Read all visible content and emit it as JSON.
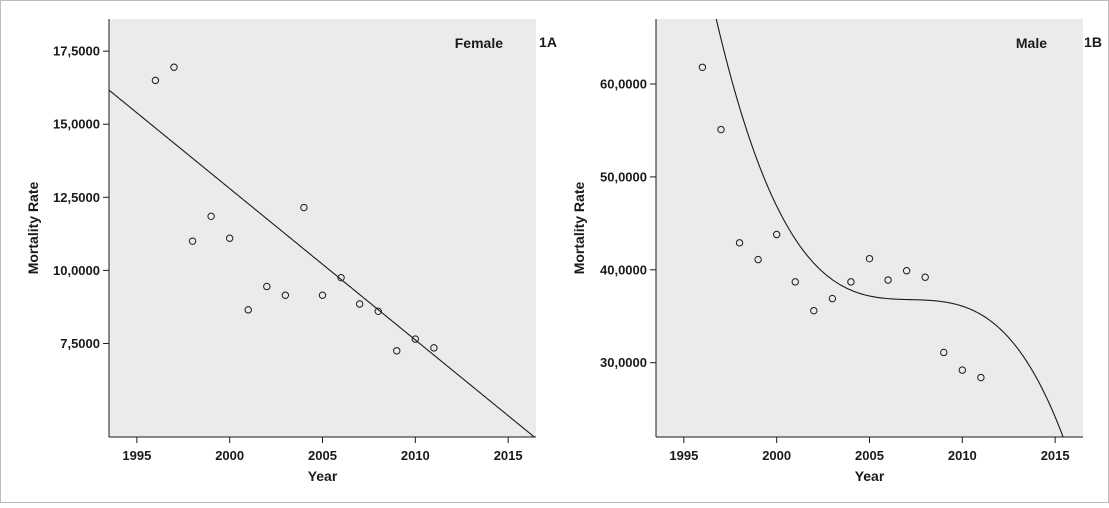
{
  "chart_data": [
    {
      "type": "scatter",
      "panel_label": "1A",
      "title": "Female",
      "xlabel": "Year",
      "ylabel": "Mortality Rate",
      "xlim": [
        1993.5,
        2016.5
      ],
      "ylim": [
        4300,
        18600
      ],
      "xticks": [
        1995,
        2000,
        2005,
        2010,
        2015
      ],
      "xtick_labels": [
        "1995",
        "2000",
        "2005",
        "2010",
        "2015"
      ],
      "yticks": [
        7500,
        10000,
        12500,
        15000,
        17500
      ],
      "ytick_labels": [
        "7,5000",
        "10,0000",
        "12,5000",
        "15,0000",
        "17,5000"
      ],
      "grid": false,
      "background": "#ebebeb",
      "points": [
        {
          "x": 1996,
          "y": 16500
        },
        {
          "x": 1997,
          "y": 16950
        },
        {
          "x": 1998,
          "y": 11000
        },
        {
          "x": 1999,
          "y": 11850
        },
        {
          "x": 2000,
          "y": 11100
        },
        {
          "x": 2001,
          "y": 8650
        },
        {
          "x": 2002,
          "y": 9450
        },
        {
          "x": 2003,
          "y": 9150
        },
        {
          "x": 2004,
          "y": 12150
        },
        {
          "x": 2005,
          "y": 9150
        },
        {
          "x": 2006,
          "y": 9750
        },
        {
          "x": 2007,
          "y": 8850
        },
        {
          "x": 2008,
          "y": 8600
        },
        {
          "x": 2009,
          "y": 7250
        },
        {
          "x": 2010,
          "y": 7650
        },
        {
          "x": 2011,
          "y": 7350
        }
      ],
      "fit": {
        "kind": "linear",
        "slope": -518,
        "intercept": 1048800
      }
    },
    {
      "type": "scatter",
      "panel_label": "1B",
      "title": "Male",
      "xlabel": "Year",
      "ylabel": "Mortality Rate",
      "xlim": [
        1993.5,
        2016.5
      ],
      "ylim": [
        22000,
        67000
      ],
      "xticks": [
        1995,
        2000,
        2005,
        2010,
        2015
      ],
      "xtick_labels": [
        "1995",
        "2000",
        "2005",
        "2010",
        "2015"
      ],
      "yticks": [
        30000,
        40000,
        50000,
        60000
      ],
      "ytick_labels": [
        "30,0000",
        "40,0000",
        "50,0000",
        "60,0000"
      ],
      "grid": false,
      "background": "#ebebeb",
      "points": [
        {
          "x": 1996,
          "y": 61800
        },
        {
          "x": 1997,
          "y": 55100
        },
        {
          "x": 1998,
          "y": 42900
        },
        {
          "x": 1999,
          "y": 41100
        },
        {
          "x": 2000,
          "y": 43800
        },
        {
          "x": 2001,
          "y": 38700
        },
        {
          "x": 2002,
          "y": 35600
        },
        {
          "x": 2003,
          "y": 36900
        },
        {
          "x": 2004,
          "y": 38700
        },
        {
          "x": 2005,
          "y": 41200
        },
        {
          "x": 2006,
          "y": 38900
        },
        {
          "x": 2007,
          "y": 39900
        },
        {
          "x": 2008,
          "y": 39200
        },
        {
          "x": 2009,
          "y": 31100
        },
        {
          "x": 2010,
          "y": 29200
        },
        {
          "x": 2011,
          "y": 28400
        }
      ],
      "fit": {
        "kind": "cubic",
        "x0": 2003.5,
        "coefficients": [
          38300,
          -1120.5,
          288.26,
          -25.89
        ]
      }
    }
  ]
}
